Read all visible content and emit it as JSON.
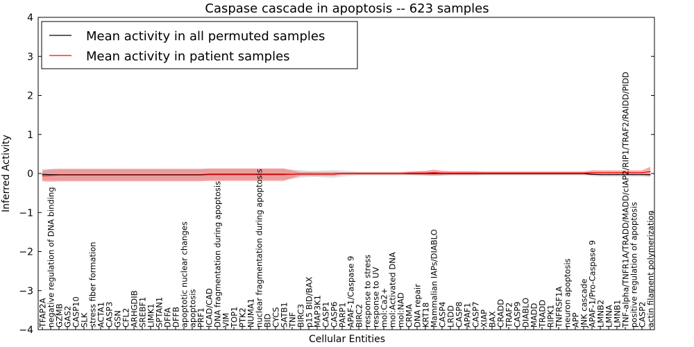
{
  "chart_data": {
    "type": "line",
    "title": "Caspase cascade in apoptosis -- 623 samples",
    "xlabel": "Cellular Entities",
    "ylabel": "Inferred Activity",
    "ylim": [
      -4,
      4
    ],
    "yticks": [
      "4",
      "3",
      "2",
      "1",
      "0",
      "−1",
      "−2",
      "−3",
      "−4"
    ],
    "grid": false,
    "legend_position": "top-left",
    "categories": [
      "TFAP2A",
      "negative regulation of DNA binding",
      "GZMB",
      "GAS2",
      "CASP10",
      "SLK",
      "stress fiber formation",
      "ACTA1",
      "CASP3",
      "GSN",
      "CFL2",
      "ARHGDIB",
      "SREBF1",
      "LIMK1",
      "SPTAN1",
      "DFFA",
      "DFFB",
      "apoptotic nuclear changes",
      "apoptosis",
      "PRF1",
      "ICAD/CAD",
      "DNA fragmentation during apoptosis",
      "VIM",
      "TOP1",
      "PTK2",
      "NUMA1",
      "nuclear fragmentation during apoptosis",
      "BID",
      "CYCS",
      "SATB1",
      "TNF",
      "BIRC3",
      "p15 BID/BAX",
      "MAP3K1",
      "CASP1",
      "CASP6",
      "PARP1",
      "APAF-1/Caspase 9",
      "BIRC2",
      "response to stress",
      "response to UV",
      "mol:Ca2+",
      "mol:Activated DNA",
      "mol:NAD",
      "CRMA",
      "DNA repair",
      "KRT18",
      "Mammalian IAPs/DIABLO",
      "CASP4",
      "LRDD",
      "CASP8",
      "APAF1",
      "CASP7",
      "XIAP",
      "BAX",
      "CRADD",
      "TRAF2",
      "CASP9",
      "DIABLO",
      "MADD",
      "TRADD",
      "RIPK1",
      "TNFRSF1A",
      "neuron apoptosis",
      "APP",
      "JNK cascade",
      "APAF-1/Pro-Caspase 9",
      "LMNB2",
      "LMNA",
      "LMNB1",
      "TNF-alpha/TNFR1A/TRADD/MADD/cIAP2/RIP1/TRAF2/RAIDD/PIDD",
      "positive regulation of apoptosis",
      "CASP2",
      "actin filament polymerization"
    ],
    "series": [
      {
        "name": "Mean activity in all permuted samples",
        "color": "#000000",
        "values": [
          -0.02,
          -0.03,
          -0.03,
          -0.03,
          -0.03,
          -0.03,
          -0.03,
          -0.03,
          -0.03,
          -0.03,
          -0.03,
          -0.03,
          -0.03,
          -0.03,
          -0.03,
          -0.03,
          -0.03,
          -0.03,
          -0.03,
          -0.03,
          -0.02,
          -0.02,
          -0.02,
          -0.02,
          -0.02,
          -0.02,
          -0.02,
          -0.02,
          -0.02,
          -0.02,
          -0.02,
          -0.01,
          -0.01,
          -0.01,
          -0.01,
          -0.01,
          0,
          0,
          0,
          0,
          0,
          0,
          0,
          0,
          0,
          0,
          0,
          0,
          0,
          0,
          0,
          0,
          0,
          0,
          0,
          0,
          0,
          0,
          0,
          0,
          0,
          0,
          0,
          0,
          0,
          0,
          -0.02,
          -0.03,
          -0.03,
          -0.03,
          -0.03,
          -0.03,
          -0.03,
          -0.03
        ],
        "band": [
          0.14,
          0.14,
          0.14,
          0.14,
          0.14,
          0.14,
          0.14,
          0.14,
          0.14,
          0.14,
          0.14,
          0.14,
          0.14,
          0.14,
          0.14,
          0.14,
          0.14,
          0.14,
          0.14,
          0.14,
          0.14,
          0.14,
          0.14,
          0.14,
          0.14,
          0.14,
          0.14,
          0.14,
          0.14,
          0.14,
          0.12,
          0.1,
          0.08,
          0.08,
          0.09,
          0.1,
          0.08,
          0.06,
          0.05,
          0.05,
          0.05,
          0.05,
          0.05,
          0.05,
          0.05,
          0.05,
          0.05,
          0.05,
          0.05,
          0.05,
          0.05,
          0.05,
          0.05,
          0.05,
          0.05,
          0.05,
          0.05,
          0.05,
          0.05,
          0.05,
          0.05,
          0.05,
          0.05,
          0.05,
          0.05,
          0.05,
          0.05,
          0.05,
          0.05,
          0.05,
          0.05,
          0.05,
          0.05,
          0.06
        ]
      },
      {
        "name": "Mean activity in patient samples",
        "color": "#ff0000",
        "values": [
          -0.06,
          -0.05,
          -0.04,
          -0.04,
          -0.04,
          -0.04,
          -0.04,
          -0.04,
          -0.04,
          -0.04,
          -0.04,
          -0.04,
          -0.04,
          -0.04,
          -0.04,
          -0.04,
          -0.04,
          -0.04,
          -0.04,
          -0.04,
          -0.03,
          -0.03,
          -0.03,
          -0.03,
          -0.03,
          -0.03,
          -0.03,
          -0.03,
          -0.03,
          -0.03,
          -0.02,
          -0.01,
          -0.01,
          -0.01,
          -0.01,
          -0.01,
          0,
          0,
          0,
          0,
          0,
          0,
          0,
          0,
          0.01,
          0.01,
          0.01,
          0.02,
          0.01,
          0.01,
          0.01,
          0.01,
          0.01,
          0.01,
          0.01,
          0.01,
          0.01,
          0.01,
          0.01,
          0.01,
          0.01,
          0.01,
          0.01,
          0.01,
          0.01,
          0.01,
          0.02,
          0.02,
          0.02,
          0.02,
          0.02,
          0.02,
          0.02,
          0.05
        ],
        "band": [
          0.14,
          0.16,
          0.16,
          0.16,
          0.16,
          0.16,
          0.16,
          0.16,
          0.16,
          0.16,
          0.16,
          0.16,
          0.16,
          0.16,
          0.16,
          0.16,
          0.16,
          0.16,
          0.16,
          0.16,
          0.16,
          0.16,
          0.16,
          0.16,
          0.16,
          0.16,
          0.16,
          0.16,
          0.16,
          0.16,
          0.1,
          0.05,
          0.05,
          0.05,
          0.05,
          0.05,
          0.03,
          0.03,
          0.03,
          0.03,
          0.03,
          0.03,
          0.03,
          0.03,
          0.04,
          0.05,
          0.06,
          0.08,
          0.06,
          0.05,
          0.05,
          0.05,
          0.05,
          0.04,
          0.04,
          0.04,
          0.04,
          0.04,
          0.04,
          0.04,
          0.04,
          0.04,
          0.04,
          0.04,
          0.04,
          0.04,
          0.06,
          0.06,
          0.06,
          0.06,
          0.06,
          0.06,
          0.06,
          0.12
        ]
      }
    ]
  }
}
